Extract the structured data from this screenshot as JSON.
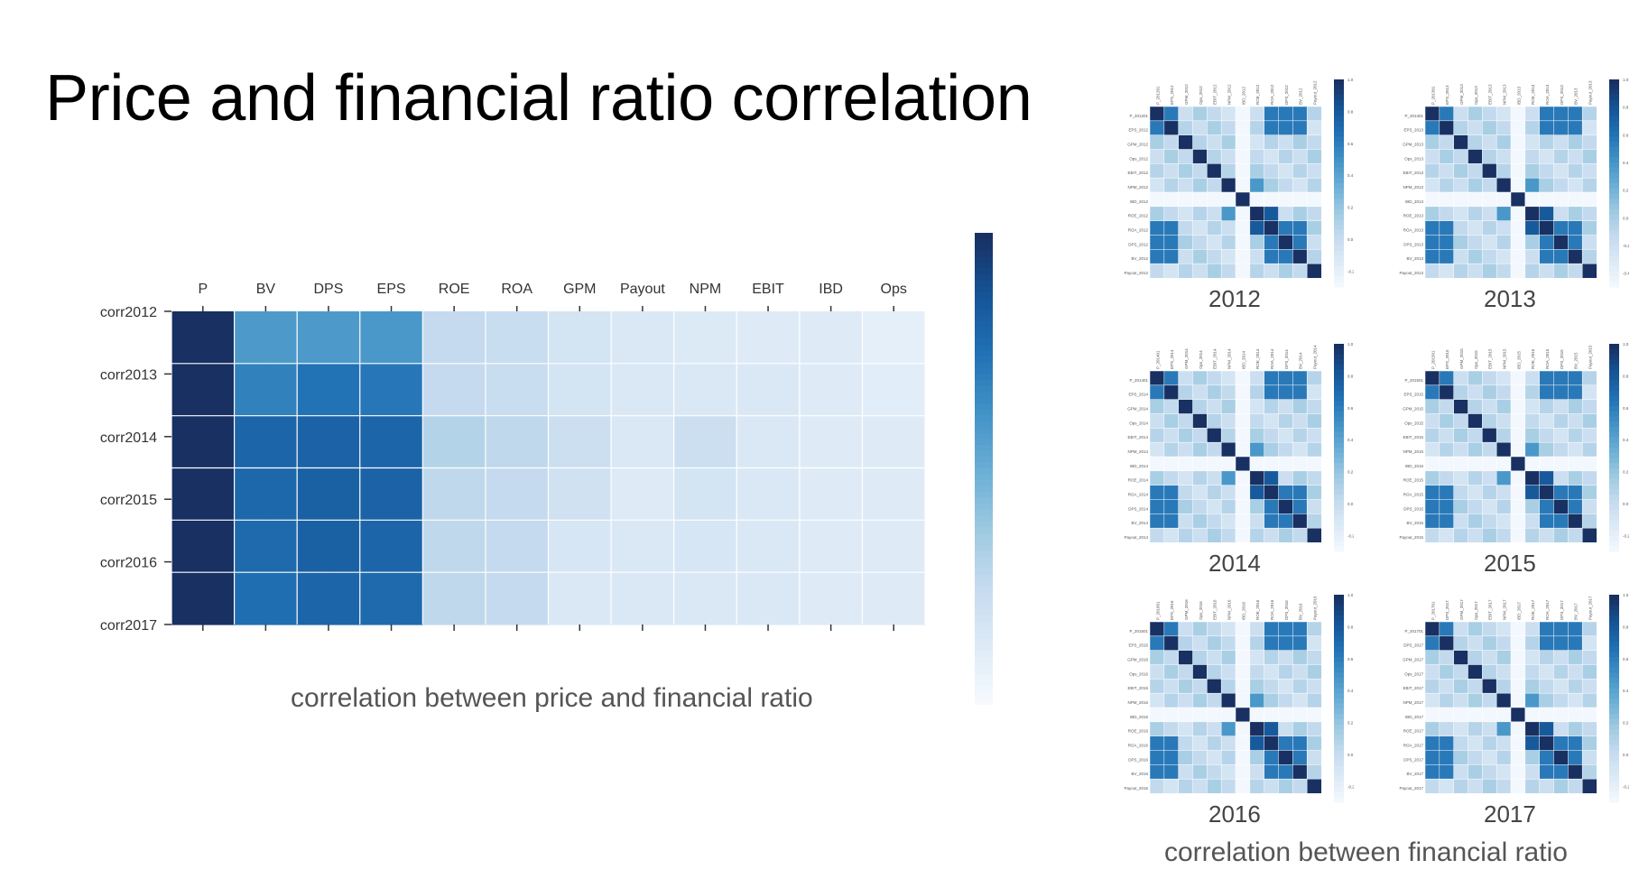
{
  "slide": {
    "title": "Price and financial ratio correlation",
    "main_caption": "correlation between price and financial ratio",
    "small_caption": "correlation between financial ratio"
  },
  "colors": {
    "low": "#f7fbff",
    "mid": "#6a9fd0",
    "high": "#08306b"
  },
  "chart_data": [
    {
      "type": "heatmap",
      "title": "",
      "xlabel": "",
      "ylabel": "",
      "x": [
        "P",
        "BV",
        "DPS",
        "EPS",
        "ROE",
        "ROA",
        "GPM",
        "Payout",
        "NPM",
        "EBIT",
        "IBD",
        "Ops"
      ],
      "y": [
        "corr2012",
        "corr2013",
        "corr2014",
        "corr2015",
        "corr2016",
        "corr2017"
      ],
      "colorbar": {
        "range": [
          -0.1,
          1.0
        ],
        "ticks": [
          1.0,
          0.8,
          0.6,
          0.4,
          0.2,
          0.0
        ]
      },
      "values": [
        [
          1.0,
          0.55,
          0.55,
          0.56,
          0.18,
          0.16,
          0.1,
          0.06,
          0.05,
          0.04,
          0.04,
          0.0
        ],
        [
          1.0,
          0.66,
          0.72,
          0.7,
          0.18,
          0.16,
          0.1,
          0.06,
          0.06,
          0.06,
          0.04,
          0.02
        ],
        [
          1.0,
          0.78,
          0.79,
          0.78,
          0.24,
          0.2,
          0.14,
          0.06,
          0.14,
          0.06,
          0.04,
          0.04
        ],
        [
          1.0,
          0.77,
          0.8,
          0.79,
          0.2,
          0.18,
          0.12,
          0.04,
          0.1,
          0.06,
          0.04,
          0.04
        ],
        [
          1.0,
          0.76,
          0.8,
          0.78,
          0.2,
          0.18,
          0.08,
          0.06,
          0.08,
          0.06,
          0.04,
          0.04
        ],
        [
          1.0,
          0.74,
          0.78,
          0.76,
          0.2,
          0.18,
          0.06,
          0.06,
          0.06,
          0.06,
          0.04,
          0.04
        ]
      ]
    },
    {
      "type": "heatmap",
      "title": "2012",
      "year": "2012",
      "labels": [
        "P_201201",
        "EPS_2012",
        "GPM_2012",
        "Ops_2012",
        "EBIT_2012",
        "NPM_2012",
        "IBD_2012",
        "ROE_2012",
        "ROA_2012",
        "DPS_2012",
        "BV_2012",
        "Payout_2012"
      ],
      "colorbar_ticks": [
        1.0,
        0.8,
        0.6,
        0.4,
        0.2,
        0.0,
        -0.2
      ]
    },
    {
      "type": "heatmap",
      "title": "2013",
      "year": "2013",
      "labels": [
        "P_201301",
        "EPS_2013",
        "GPM_2013",
        "Ops_2013",
        "EBIT_2013",
        "NPM_2013",
        "IBD_2013",
        "ROE_2013",
        "ROA_2013",
        "DPS_2013",
        "BV_2013",
        "Payout_2013"
      ],
      "colorbar_ticks": [
        1.0,
        0.8,
        0.6,
        0.4,
        0.2,
        0.0,
        -0.2,
        -0.4
      ]
    },
    {
      "type": "heatmap",
      "title": "2014",
      "year": "2014",
      "labels": [
        "P_201401",
        "EPS_2014",
        "GPM_2014",
        "Ops_2014",
        "EBIT_2014",
        "NPM_2014",
        "IBD_2014",
        "ROE_2014",
        "ROA_2014",
        "DPS_2014",
        "BV_2014",
        "Payout_2014"
      ],
      "colorbar_ticks": [
        1.0,
        0.8,
        0.6,
        0.4,
        0.2,
        0.0,
        -0.2
      ]
    },
    {
      "type": "heatmap",
      "title": "2015",
      "year": "2015",
      "labels": [
        "P_201501",
        "EPS_2015",
        "GPM_2015",
        "Ops_2015",
        "EBIT_2015",
        "NPM_2015",
        "IBD_2015",
        "ROE_2015",
        "ROA_2015",
        "DPS_2015",
        "BV_2015",
        "Payout_2015"
      ],
      "colorbar_ticks": [
        1.0,
        0.8,
        0.6,
        0.4,
        0.2,
        0.0,
        -0.2
      ]
    },
    {
      "type": "heatmap",
      "title": "2016",
      "year": "2016",
      "labels": [
        "P_201601",
        "EPS_2016",
        "GPM_2016",
        "Ops_2016",
        "EBIT_2016",
        "NPM_2016",
        "IBD_2016",
        "ROE_2016",
        "ROA_2016",
        "DPS_2016",
        "BV_2016",
        "Payout_2016"
      ],
      "colorbar_ticks": [
        1.0,
        0.8,
        0.6,
        0.4,
        0.2,
        0.0,
        -0.2
      ]
    },
    {
      "type": "heatmap",
      "title": "2017",
      "year": "2017",
      "labels": [
        "P_201701",
        "DPS_2017",
        "GPM_2017",
        "Ops_2017",
        "EBIT_2017",
        "NPM_2017",
        "IBD_2017",
        "ROE_2017",
        "ROA_2017",
        "DPS_2017",
        "BV_2017",
        "Payout_2017"
      ],
      "colorbar_ticks": [
        1.0,
        0.8,
        0.6,
        0.4,
        0.2,
        0.0,
        -0.2
      ]
    }
  ]
}
